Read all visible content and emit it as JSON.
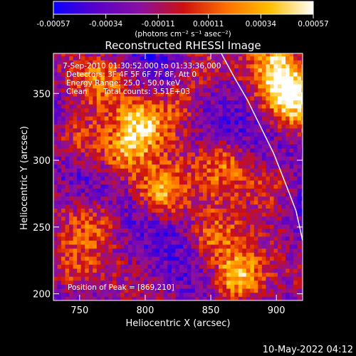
{
  "chart_data": {
    "type": "heatmap",
    "title": "Reconstructed RHESSI Image",
    "xlabel": "Heliocentric X (arcsec)",
    "ylabel": "Heliocentric Y (arcsec)",
    "xlim": [
      730,
      920
    ],
    "ylim": [
      195,
      380
    ],
    "x_ticks": [
      750,
      800,
      850,
      900
    ],
    "y_ticks": [
      200,
      250,
      300,
      350
    ],
    "colorbar": {
      "min": -0.00057,
      "max": 0.00057,
      "tick_values": [
        -0.00057,
        -0.00034,
        -0.00011,
        0.00011,
        0.00034,
        0.00057
      ],
      "tick_labels": [
        "-0.00057",
        "-0.00034",
        "-0.00011",
        "0.00011",
        "0.00034",
        "0.00057"
      ],
      "units_label": "(photons cm⁻² s⁻¹ asec⁻²)",
      "colors": [
        "#0a00ff",
        "#5a00c8",
        "#8a10a0",
        "#cc1010",
        "#ff7000",
        "#ffc000",
        "#ffffff"
      ]
    },
    "annotations": {
      "time_range": "7-Sep-2010 01:30:52.000 to 01:33:36.000",
      "detectors": "Detectors: 3F 4F 5F 6F 7F 8F, Att 0",
      "energy": "Energy Range: 25.0 - 50.0 keV",
      "clean_label": "Clean",
      "total_counts": "Total counts: 3.51E+03",
      "peak": "Position of Peak = [869,210]"
    },
    "peak_position": [
      869,
      210
    ],
    "limb_curve": {
      "x": [
        858,
        868,
        878,
        888,
        898,
        908,
        915,
        920
      ],
      "y": [
        380,
        362,
        345,
        325,
        305,
        280,
        262,
        240
      ]
    },
    "bright_sources": [
      {
        "x": 869,
        "y": 210,
        "intensity": 1.0
      },
      {
        "x": 910,
        "y": 345,
        "intensity": 0.95
      },
      {
        "x": 810,
        "y": 275,
        "intensity": 0.8
      },
      {
        "x": 795,
        "y": 325,
        "intensity": 0.75
      },
      {
        "x": 780,
        "y": 300,
        "intensity": 0.6
      },
      {
        "x": 860,
        "y": 295,
        "intensity": 0.6
      },
      {
        "x": 850,
        "y": 240,
        "intensity": 0.55
      },
      {
        "x": 745,
        "y": 315,
        "intensity": 0.55
      },
      {
        "x": 900,
        "y": 370,
        "intensity": 0.8
      },
      {
        "x": 765,
        "y": 360,
        "intensity": 0.5
      },
      {
        "x": 825,
        "y": 340,
        "intensity": 0.45
      },
      {
        "x": 760,
        "y": 250,
        "intensity": 0.45
      },
      {
        "x": 895,
        "y": 280,
        "intensity": 0.5
      },
      {
        "x": 840,
        "y": 365,
        "intensity": 0.35
      },
      {
        "x": 740,
        "y": 215,
        "intensity": 0.4
      }
    ]
  },
  "footer": {
    "timestamp": "10-May-2022 04:12"
  }
}
